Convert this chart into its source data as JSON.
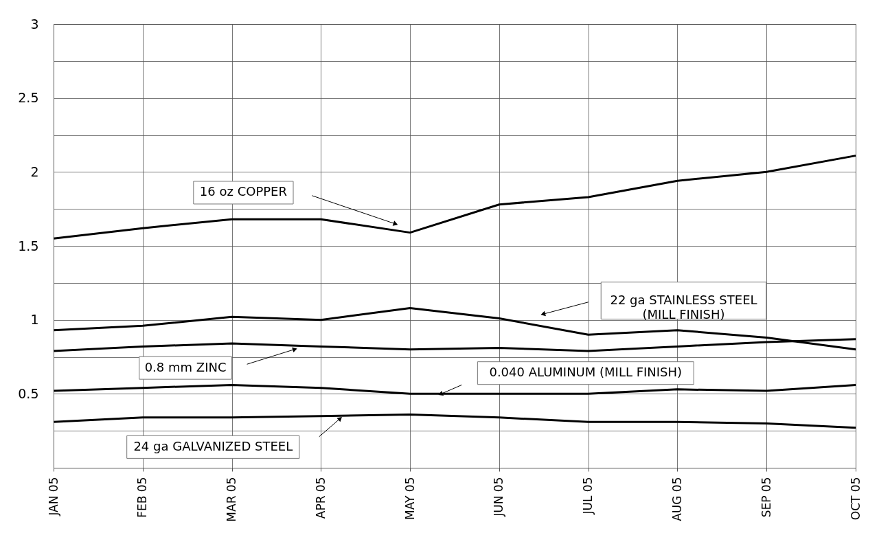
{
  "chart_data": {
    "type": "line",
    "categories": [
      "JAN 05",
      "FEB 05",
      "MAR 05",
      "APR 05",
      "MAY 05",
      "JUN 05",
      "JUL 05",
      "AUG 05",
      "SEP 05",
      "OCT 05"
    ],
    "ylim": [
      0,
      3
    ],
    "yticks": [
      {
        "value": 0,
        "label": null
      },
      {
        "value": 0.25,
        "label": null
      },
      0.5,
      {
        "value": 0.75,
        "label": null
      },
      1,
      {
        "value": 1.25,
        "label": null
      },
      1.5,
      {
        "value": 1.75,
        "label": null
      },
      2,
      {
        "value": 2.25,
        "label": null
      },
      2.5,
      {
        "value": 2.75,
        "label": null
      },
      3
    ],
    "grid": true,
    "marker": "none",
    "line_style": "solid",
    "series": [
      {
        "name": "16 oz COPPER",
        "color": "#000000",
        "values": [
          1.55,
          1.62,
          1.68,
          1.68,
          1.59,
          1.78,
          1.83,
          1.94,
          2.0,
          2.11
        ]
      },
      {
        "name": "22 ga STAINLESS STEEL (MILL FINISH)",
        "color": "#000000",
        "values": [
          0.93,
          0.96,
          1.02,
          1.0,
          1.08,
          1.01,
          0.9,
          0.93,
          0.88,
          0.8
        ]
      },
      {
        "name": "0.8 mm ZINC",
        "color": "#000000",
        "values": [
          0.79,
          0.82,
          0.84,
          0.82,
          0.8,
          0.81,
          0.79,
          0.82,
          0.85,
          0.87
        ]
      },
      {
        "name": "0.040 ALUMINUM (MILL FINISH)",
        "color": "#000000",
        "values": [
          0.52,
          0.54,
          0.56,
          0.54,
          0.5,
          0.5,
          0.5,
          0.53,
          0.52,
          0.56
        ]
      },
      {
        "name": "24 ga GALVANIZED STEEL",
        "color": "#000000",
        "values": [
          0.31,
          0.34,
          0.34,
          0.35,
          0.36,
          0.34,
          0.31,
          0.31,
          0.3,
          0.27
        ]
      }
    ]
  }
}
